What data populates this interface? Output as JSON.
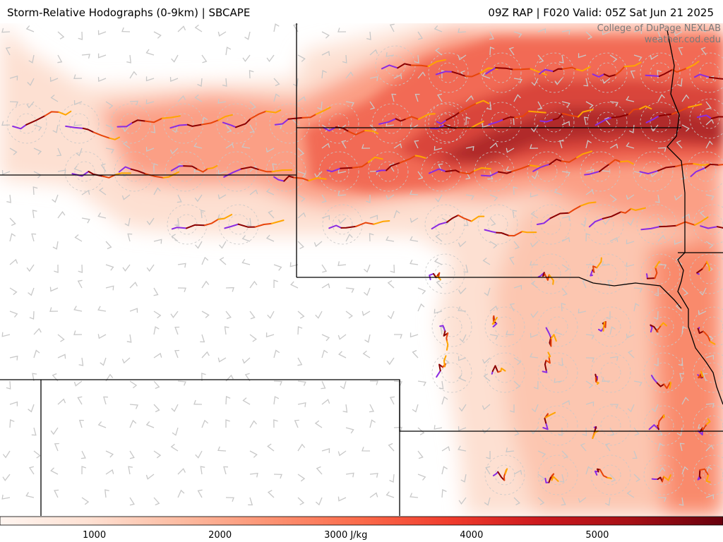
{
  "header": {
    "title_left": "Storm-Relative Hodographs (0-9km) | SBCAPE",
    "title_right": "09Z RAP | F020 Valid: 05Z Sat Jun 21 2025"
  },
  "credit": {
    "line1": "College of DuPage NEXLAB",
    "line2": "weather.cod.edu"
  },
  "colorbar": {
    "labels": [
      {
        "text": "1000",
        "value": 1000
      },
      {
        "text": "2000",
        "value": 2000
      },
      {
        "text": "3000 J/kg",
        "value": 3000
      },
      {
        "text": "4000",
        "value": 4000
      },
      {
        "text": "5000",
        "value": 5000
      }
    ],
    "min": 250,
    "max": 6000,
    "stops": [
      "#fff5f0",
      "#fee0d2",
      "#fcbba1",
      "#fc9272",
      "#fb6a4a",
      "#ef3b2c",
      "#cb181d",
      "#a50f15",
      "#67000d"
    ]
  },
  "layers": {
    "field": "SBCAPE",
    "hodograph_layer_colors": [
      "#8a2be2",
      "#8b0000",
      "#e8440a",
      "#ffa500"
    ],
    "barb_color": "#c8c8c8"
  }
}
